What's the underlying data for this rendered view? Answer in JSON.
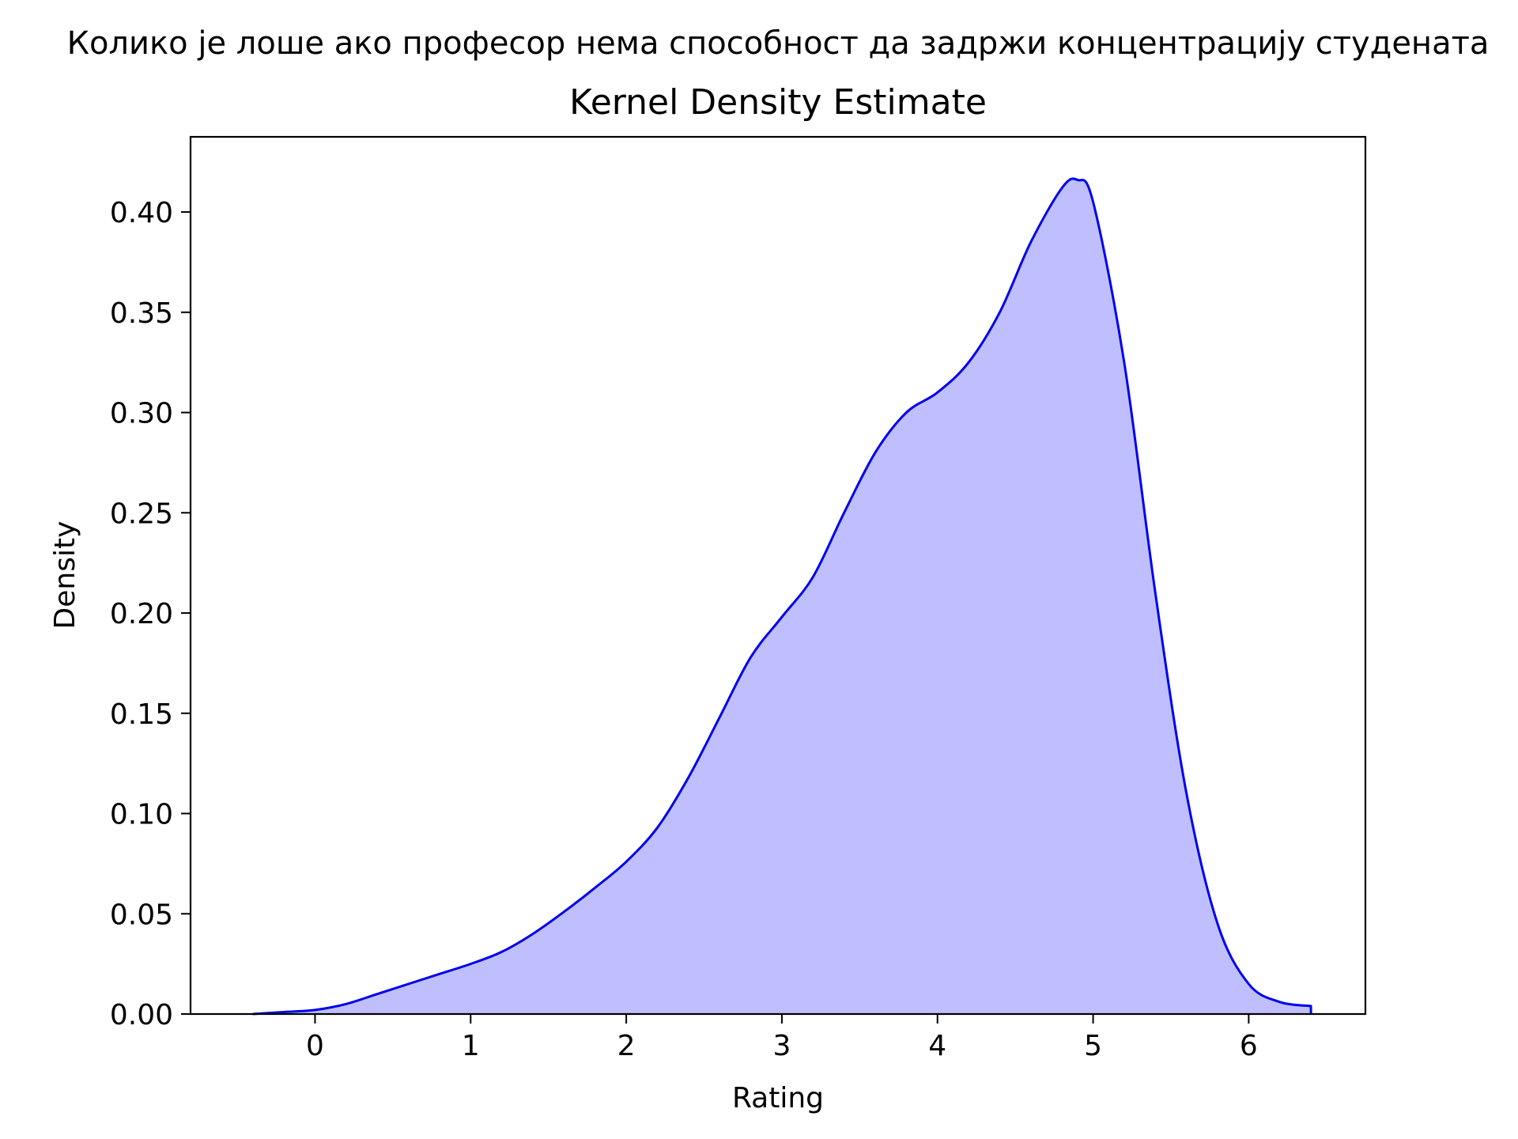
{
  "chart_data": {
    "type": "area",
    "suptitle": "Колико је лоше ако професор нема способност да задржи концентрацију студената",
    "title": "Kernel Density Estimate",
    "xlabel": "Rating",
    "ylabel": "Density",
    "xlim": [
      -0.8,
      6.75
    ],
    "ylim": [
      0,
      0.4375
    ],
    "x_ticks": [
      0,
      1,
      2,
      3,
      4,
      5,
      6
    ],
    "x_tick_labels": [
      "0",
      "1",
      "2",
      "3",
      "4",
      "5",
      "6"
    ],
    "y_ticks": [
      0.0,
      0.05,
      0.1,
      0.15,
      0.2,
      0.25,
      0.3,
      0.35,
      0.4
    ],
    "y_tick_labels": [
      "0.00",
      "0.05",
      "0.10",
      "0.15",
      "0.20",
      "0.25",
      "0.30",
      "0.35",
      "0.40"
    ],
    "grid": false,
    "legend": "none",
    "colors": {
      "line": "#0000ee",
      "fill": "#bfbfff"
    },
    "series": [
      {
        "x": [
          -0.4,
          -0.2,
          0.0,
          0.2,
          0.4,
          0.6,
          0.8,
          1.0,
          1.2,
          1.4,
          1.6,
          1.8,
          2.0,
          2.2,
          2.4,
          2.6,
          2.8,
          3.0,
          3.2,
          3.4,
          3.6,
          3.8,
          4.0,
          4.2,
          4.4,
          4.6,
          4.8,
          4.9,
          5.0,
          5.2,
          5.4,
          5.6,
          5.8,
          6.0,
          6.2,
          6.4
        ],
        "y": [
          0.0,
          0.001,
          0.002,
          0.005,
          0.01,
          0.015,
          0.02,
          0.025,
          0.031,
          0.04,
          0.051,
          0.063,
          0.076,
          0.093,
          0.118,
          0.148,
          0.178,
          0.198,
          0.218,
          0.25,
          0.28,
          0.3,
          0.31,
          0.325,
          0.35,
          0.385,
          0.412,
          0.416,
          0.405,
          0.325,
          0.21,
          0.11,
          0.045,
          0.015,
          0.006,
          0.004
        ]
      }
    ]
  }
}
